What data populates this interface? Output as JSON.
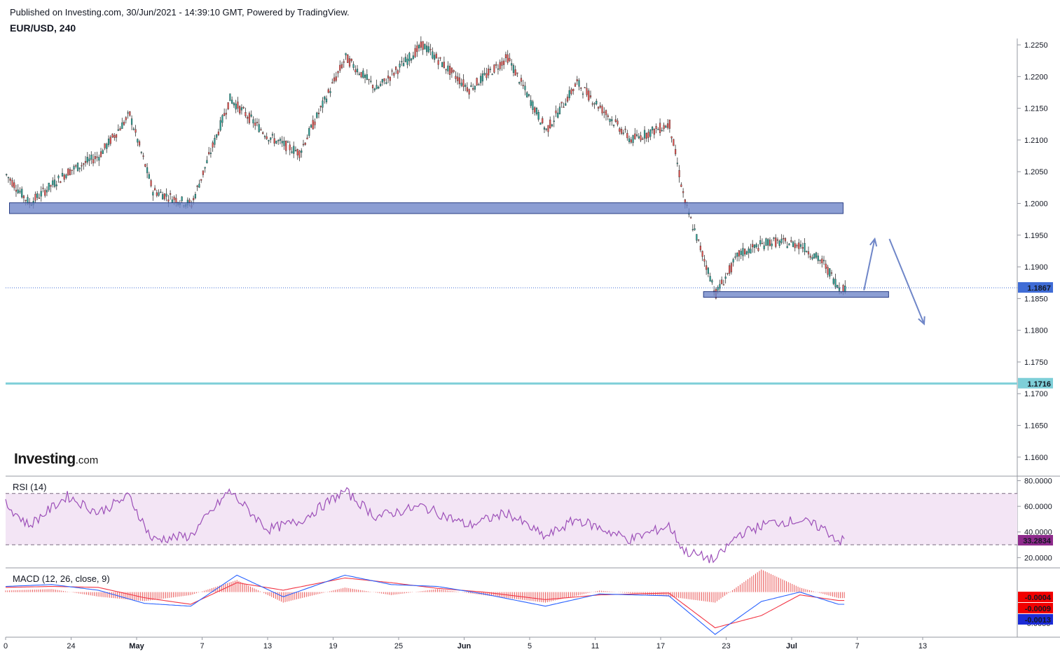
{
  "header": {
    "published": "Published on Investing.com, 30/Jun/2021 - 14:39:10 GMT, Powered by TradingView.",
    "symbol": "EUR/USD, 240"
  },
  "logo": {
    "main": "Investing",
    "sub": ".com"
  },
  "colors": {
    "bull": "#26a69a",
    "bear": "#ef5350",
    "zone": "#6f86c8",
    "support_line": "#7ecfd8",
    "rsi_line": "#9c4fb8",
    "rsi_band": "#f3e5f5",
    "macd_line": "#2962ff",
    "signal_line": "#f23645",
    "last_price": "#3f6cd6"
  },
  "chart_data": [
    {
      "type": "candlestick",
      "name": "price",
      "x_ticks": [
        "0",
        "24",
        "May",
        "7",
        "13",
        "19",
        "25",
        "Jun",
        "5",
        "11",
        "17",
        "23",
        "Jul",
        "7",
        "13"
      ],
      "y_ticks": [
        "1.2250",
        "1.2200",
        "1.2150",
        "1.2100",
        "1.2050",
        "1.2000",
        "1.1950",
        "1.1900",
        "1.1850",
        "1.1800",
        "1.1750",
        "1.1700",
        "1.1650",
        "1.1600"
      ],
      "ylim": [
        1.157,
        1.226
      ],
      "last_price": 1.1867,
      "last_price_label": "1.1867",
      "horizontal_line": 1.1716,
      "horizontal_line_label": "1.1716",
      "zones": [
        {
          "x_start": 0.5,
          "x_end": 108.6,
          "low": 1.1984,
          "high": 1.2001
        },
        {
          "x_start": 90.5,
          "x_end": 114.5,
          "low": 1.1852,
          "high": 1.1861
        }
      ],
      "arrows": [
        {
          "from": [
            111.3,
            1.1863
          ],
          "to": [
            112.7,
            1.1944
          ]
        },
        {
          "from": [
            114.6,
            1.1944
          ],
          "to": [
            119.1,
            1.181
          ]
        }
      ],
      "key_points": [
        {
          "t": 0,
          "close": 1.2045
        },
        {
          "t": 3,
          "close": 1.2
        },
        {
          "t": 8,
          "close": 1.205
        },
        {
          "t": 12,
          "close": 1.2075
        },
        {
          "t": 16,
          "close": 1.214
        },
        {
          "t": 19,
          "close": 1.202
        },
        {
          "t": 24,
          "close": 1.1998
        },
        {
          "t": 29,
          "close": 1.2165
        },
        {
          "t": 34,
          "close": 1.2105
        },
        {
          "t": 38,
          "close": 1.208
        },
        {
          "t": 44,
          "close": 1.223
        },
        {
          "t": 48,
          "close": 1.218
        },
        {
          "t": 54,
          "close": 1.225
        },
        {
          "t": 60,
          "close": 1.218
        },
        {
          "t": 65,
          "close": 1.223
        },
        {
          "t": 70,
          "close": 1.2115
        },
        {
          "t": 74,
          "close": 1.219
        },
        {
          "t": 81,
          "close": 1.21
        },
        {
          "t": 86,
          "close": 1.2125
        },
        {
          "t": 88,
          "close": 1.2
        },
        {
          "t": 92,
          "close": 1.1858
        },
        {
          "t": 95,
          "close": 1.192
        },
        {
          "t": 99,
          "close": 1.194
        },
        {
          "t": 103,
          "close": 1.1935
        },
        {
          "t": 106,
          "close": 1.1905
        },
        {
          "t": 108,
          "close": 1.1867
        }
      ]
    },
    {
      "type": "line",
      "name": "rsi",
      "label": "RSI (14)",
      "y_ticks": [
        "80.0000",
        "60.0000",
        "40.0000",
        "20.0000"
      ],
      "ylim": [
        12,
        83
      ],
      "band": [
        30,
        70
      ],
      "last_value": 33.2834,
      "last_label": "33.2834",
      "key_points": [
        {
          "t": 0,
          "v": 62
        },
        {
          "t": 3,
          "v": 45
        },
        {
          "t": 8,
          "v": 68
        },
        {
          "t": 12,
          "v": 55
        },
        {
          "t": 16,
          "v": 68
        },
        {
          "t": 19,
          "v": 34
        },
        {
          "t": 24,
          "v": 37
        },
        {
          "t": 29,
          "v": 72
        },
        {
          "t": 34,
          "v": 42
        },
        {
          "t": 38,
          "v": 48
        },
        {
          "t": 44,
          "v": 72
        },
        {
          "t": 48,
          "v": 52
        },
        {
          "t": 54,
          "v": 60
        },
        {
          "t": 60,
          "v": 45
        },
        {
          "t": 65,
          "v": 55
        },
        {
          "t": 70,
          "v": 36
        },
        {
          "t": 74,
          "v": 50
        },
        {
          "t": 81,
          "v": 34
        },
        {
          "t": 86,
          "v": 45
        },
        {
          "t": 88,
          "v": 25
        },
        {
          "t": 92,
          "v": 18
        },
        {
          "t": 95,
          "v": 38
        },
        {
          "t": 99,
          "v": 47
        },
        {
          "t": 103,
          "v": 49
        },
        {
          "t": 106,
          "v": 43
        },
        {
          "t": 108,
          "v": 33.28
        }
      ]
    },
    {
      "type": "macd",
      "name": "macd",
      "label": "MACD (12, 26, close, 9)",
      "ylim": [
        -0.0048,
        0.0025
      ],
      "last_values": {
        "histogram": -0.0004,
        "signal": -0.0009,
        "macd": -0.0013
      },
      "last_labels": {
        "histogram": "-0.0004",
        "signal": "-0.0009",
        "macd": "-0.0013"
      },
      "partial_tick": "-0.0050",
      "macd_points": [
        {
          "t": 0,
          "v": 0.0006
        },
        {
          "t": 6,
          "v": 0.0008
        },
        {
          "t": 12,
          "v": 0.0002
        },
        {
          "t": 18,
          "v": -0.0012
        },
        {
          "t": 24,
          "v": -0.0015
        },
        {
          "t": 30,
          "v": 0.0018
        },
        {
          "t": 36,
          "v": -0.0005
        },
        {
          "t": 44,
          "v": 0.0018
        },
        {
          "t": 50,
          "v": 0.0008
        },
        {
          "t": 56,
          "v": 0.0006
        },
        {
          "t": 62,
          "v": -0.0002
        },
        {
          "t": 70,
          "v": -0.0015
        },
        {
          "t": 77,
          "v": -0.0002
        },
        {
          "t": 86,
          "v": -0.0004
        },
        {
          "t": 92,
          "v": -0.0045
        },
        {
          "t": 98,
          "v": -0.001
        },
        {
          "t": 103,
          "v": 0.0
        },
        {
          "t": 108,
          "v": -0.0013
        }
      ],
      "signal_points": [
        {
          "t": 0,
          "v": 0.0005
        },
        {
          "t": 6,
          "v": 0.0006
        },
        {
          "t": 12,
          "v": 0.0005
        },
        {
          "t": 18,
          "v": -0.0006
        },
        {
          "t": 24,
          "v": -0.0013
        },
        {
          "t": 30,
          "v": 0.001
        },
        {
          "t": 36,
          "v": 0.0002
        },
        {
          "t": 44,
          "v": 0.0015
        },
        {
          "t": 50,
          "v": 0.001
        },
        {
          "t": 56,
          "v": 0.0004
        },
        {
          "t": 62,
          "v": 0.0
        },
        {
          "t": 70,
          "v": -0.0008
        },
        {
          "t": 77,
          "v": -0.0003
        },
        {
          "t": 86,
          "v": -0.0001
        },
        {
          "t": 92,
          "v": -0.0038
        },
        {
          "t": 98,
          "v": -0.0025
        },
        {
          "t": 103,
          "v": -0.0003
        },
        {
          "t": 108,
          "v": -0.0009
        }
      ]
    }
  ]
}
